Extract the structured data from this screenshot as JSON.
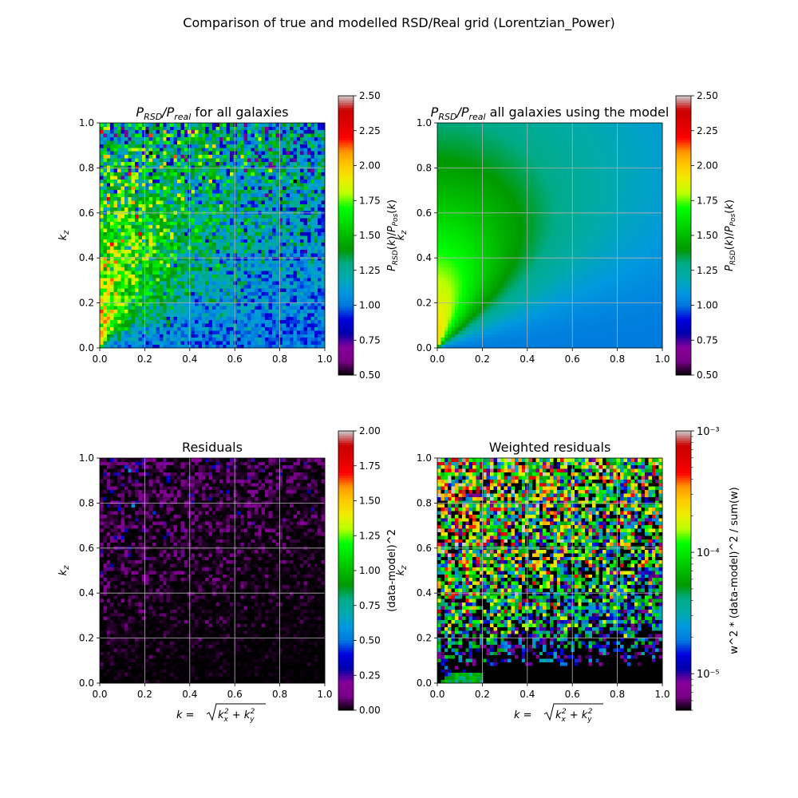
{
  "figure": {
    "suptitle": "Comparison of true and modelled RSD/Real grid (Lorentzian_Power)"
  },
  "chart_data": [
    {
      "type": "heatmap",
      "title_main": "P",
      "title_sub1": "RSD",
      "title_mid": "/P",
      "title_sub2": "real",
      "title_suffix": " for all galaxies",
      "xlabel": "",
      "ylabel_main": "k",
      "ylabel_sub": "z",
      "xlim": [
        0,
        1
      ],
      "ylim": [
        0,
        1
      ],
      "grid": true,
      "x_ticks": [
        "0.0",
        "0.2",
        "0.4",
        "0.6",
        "0.8",
        "1.0"
      ],
      "y_ticks": [
        "0.0",
        "0.2",
        "0.4",
        "0.6",
        "0.8",
        "1.0"
      ],
      "bins": 64,
      "colormap": "nipy_spectral",
      "colorbar": {
        "label": "P_RSD(k)/P_Pos(k)",
        "range": [
          0.5,
          2.5
        ],
        "scale": "linear",
        "ticks": [
          "0.50",
          "0.75",
          "1.00",
          "1.25",
          "1.50",
          "1.75",
          "2.00",
          "2.25",
          "2.50"
        ]
      },
      "sample_values": {
        "low_kz_high_k": 1.0,
        "high_kz_low_k": 1.6,
        "typical_noise": 0.35
      }
    },
    {
      "type": "heatmap",
      "title_main": "P",
      "title_sub1": "RSD",
      "title_mid": "/P",
      "title_sub2": "real",
      "title_suffix": " all galaxies using the model",
      "xlabel": "",
      "ylabel_main": "k",
      "ylabel_sub": "z",
      "xlim": [
        0,
        1
      ],
      "ylim": [
        0,
        1
      ],
      "grid": true,
      "x_ticks": [
        "0.0",
        "0.2",
        "0.4",
        "0.6",
        "0.8",
        "1.0"
      ],
      "y_ticks": [
        "0.0",
        "0.2",
        "0.4",
        "0.6",
        "0.8",
        "1.0"
      ],
      "bins": 64,
      "colormap": "nipy_spectral",
      "colorbar": {
        "label": "P_RSD(k)/P_Pos(k)",
        "range": [
          0.5,
          2.5
        ],
        "scale": "linear",
        "ticks": [
          "0.50",
          "0.75",
          "1.00",
          "1.25",
          "1.50",
          "1.75",
          "2.00",
          "2.25",
          "2.50"
        ]
      },
      "sample_values": {
        "low_kz_high_k": 1.0,
        "high_kz_low_k": 1.55,
        "peak": 1.65
      }
    },
    {
      "type": "heatmap",
      "title": "Residuals",
      "xlabel": "k = sqrt(kx^2 + ky^2)",
      "ylabel_main": "k",
      "ylabel_sub": "z",
      "xlim": [
        0,
        1
      ],
      "ylim": [
        0,
        1
      ],
      "grid": true,
      "x_ticks": [
        "0.0",
        "0.2",
        "0.4",
        "0.6",
        "0.8",
        "1.0"
      ],
      "y_ticks": [
        "0.0",
        "0.2",
        "0.4",
        "0.6",
        "0.8",
        "1.0"
      ],
      "bins": 64,
      "colormap": "nipy_spectral",
      "colorbar": {
        "label": "(data-model)^2",
        "range": [
          0,
          2
        ],
        "scale": "linear",
        "ticks": [
          "0.00",
          "0.25",
          "0.50",
          "0.75",
          "1.00",
          "1.25",
          "1.50",
          "1.75",
          "2.00"
        ]
      },
      "sample_values": {
        "typical": 0.05,
        "high_kz_max": 0.3
      }
    },
    {
      "type": "heatmap",
      "title": "Weighted residuals",
      "xlabel": "k = sqrt(kx^2 + ky^2)",
      "ylabel_main": "k",
      "ylabel_sub": "z",
      "xlim": [
        0,
        1
      ],
      "ylim": [
        0,
        1
      ],
      "grid": true,
      "x_ticks": [
        "0.0",
        "0.2",
        "0.4",
        "0.6",
        "0.8",
        "1.0"
      ],
      "y_ticks": [
        "0.0",
        "0.2",
        "0.4",
        "0.6",
        "0.8",
        "1.0"
      ],
      "bins": 64,
      "colormap": "nipy_spectral",
      "colorbar": {
        "label": "w^2 * (data-model)^2 / sum(w)",
        "range": [
          5e-06,
          0.001
        ],
        "scale": "log",
        "ticks": [
          "10⁻⁵",
          "10⁻⁴",
          "10⁻³"
        ]
      },
      "sample_values": {
        "typical": 5e-05,
        "low_kz_floor": 5e-06
      }
    }
  ]
}
